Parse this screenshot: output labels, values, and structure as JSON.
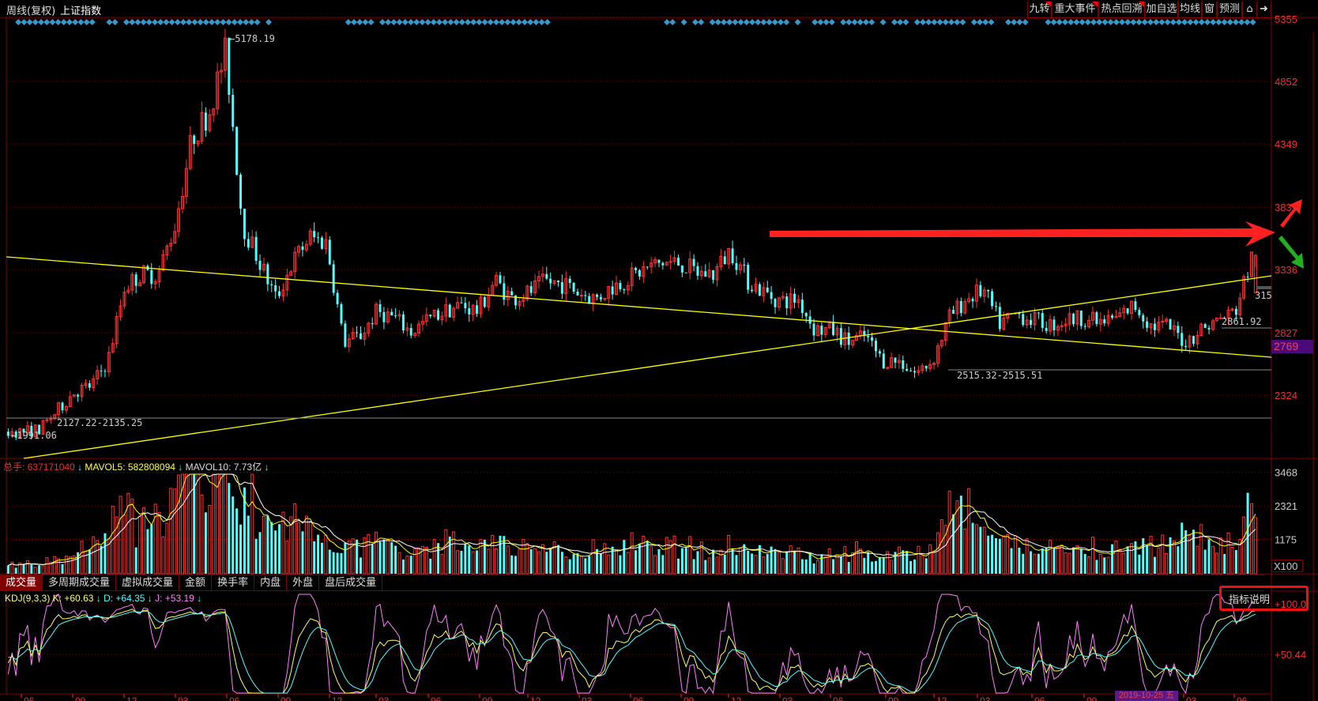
{
  "header": {
    "period": "周线(复权)",
    "name": "上证指数"
  },
  "toolbar": [
    {
      "label": "九转",
      "flag": true
    },
    {
      "label": "重大事件",
      "flag": true
    },
    {
      "label": "热点回溯",
      "flag": true
    },
    {
      "label": "加自选",
      "flag": false
    },
    {
      "label": "均线",
      "flag": false
    },
    {
      "label": "窗",
      "flag": false
    },
    {
      "label": "预测",
      "flag": false
    }
  ],
  "toolbar_icons": [
    "lock-icon",
    "collapse-right-icon"
  ],
  "colors": {
    "up": "#ff3232",
    "down": "#54fcfc",
    "trendline": "#ffff00",
    "grid": "#800000",
    "axis_text": "#f03030",
    "event_marker": "#3399cc",
    "k": "#ffff60",
    "d": "#54fcfc",
    "j": "#ff80ff",
    "mavol5": "#ffff00",
    "mavol10": "#ffffff"
  },
  "price_axis": [
    "5355",
    "4852",
    "4349",
    "3839",
    "3336",
    "2827",
    "2324"
  ],
  "last_price_tag": "2769",
  "annotations": {
    "high": "5178.19",
    "low_start": "1991.06",
    "range1": "2127.22-2135.25",
    "range2": "2515.32-2515.51",
    "level": "2861.92",
    "last": "315"
  },
  "volume": {
    "total_label": "总手: 637171040",
    "mavol5_label": "MAVOL5: 582808094",
    "mavol10_label": "MAVOL10: 7.73亿",
    "axis": [
      "3468",
      "2321",
      "1175"
    ],
    "unit": "X100"
  },
  "tabs": [
    "成交量",
    "多周期成交量",
    "虚拟成交量",
    "金额",
    "换手率",
    "内盘",
    "外盘",
    "盘后成交量"
  ],
  "kdj": {
    "name": "KDJ(9,3,3)",
    "k_label": "K: +60.63",
    "d_label": "D: +64.35",
    "j_label": "J: +53.19",
    "axis": [
      "+100.0",
      "+50.44"
    ],
    "explain_button": "指标说明"
  },
  "x_axis": [
    "06",
    "09",
    "12",
    "03",
    "06",
    "09",
    "12",
    "03",
    "06",
    "09",
    "12",
    "03",
    "06",
    "09",
    "12",
    "03",
    "06",
    "09",
    "12",
    "03",
    "06",
    "09",
    "03",
    "06"
  ],
  "cursor_date": "2019-10-25 五",
  "chart_data": {
    "type": "candlestick",
    "interval": "weekly",
    "instrument": "上证指数",
    "period_start": "2014-06",
    "period_end": "2020-07",
    "ylim": [
      1900,
      5400
    ],
    "price_path_monthly_close": [
      2030,
      2050,
      2200,
      2350,
      2400,
      2600,
      3200,
      3300,
      3300,
      3700,
      4400,
      4600,
      5100,
      3700,
      3400,
      3100,
      3400,
      3600,
      3550,
      2750,
      2800,
      3000,
      2950,
      2830,
      2930,
      3000,
      3050,
      3000,
      3250,
      3100,
      3150,
      3240,
      3220,
      3150,
      3100,
      3200,
      3270,
      3350,
      3390,
      3390,
      3310,
      3300,
      3500,
      3250,
      3150,
      3080,
      3100,
      2850,
      2850,
      2750,
      2800,
      2600,
      2600,
      2500,
      2600,
      2950,
      3100,
      3170,
      2900,
      2980,
      2930,
      2890,
      2930,
      2950,
      2900,
      2950,
      3050,
      2880,
      2880,
      2750,
      2860,
      2930,
      3000,
      3450
    ],
    "volume_path_monthly": [
      300,
      300,
      450,
      600,
      900,
      1400,
      2000,
      1500,
      1600,
      2300,
      3100,
      3300,
      3200,
      2600,
      2000,
      1400,
      1700,
      1500,
      1300,
      1100,
      900,
      1100,
      900,
      800,
      900,
      1000,
      1050,
      900,
      1200,
      1000,
      900,
      850,
      800,
      850,
      800,
      900,
      950,
      900,
      950,
      850,
      850,
      800,
      900,
      850,
      800,
      700,
      750,
      650,
      700,
      750,
      700,
      650,
      650,
      600,
      700,
      2500,
      2000,
      1400,
      1000,
      900,
      850,
      800,
      850,
      900,
      800,
      850,
      1000,
      950,
      900,
      1700,
      1200,
      1000,
      1100,
      3000
    ],
    "high": 5178.19,
    "low": 1991.06,
    "indicators": [
      "MAVOL5",
      "MAVOL10",
      "KDJ(9,3,3)"
    ]
  }
}
